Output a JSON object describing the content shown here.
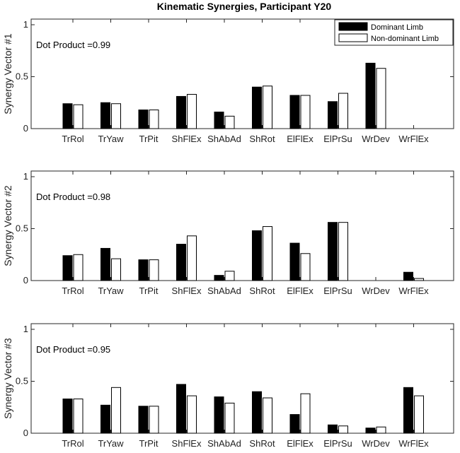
{
  "title": "Kinematic Synergies, Participant Y20",
  "legend": {
    "entries": [
      "Dominant Limb",
      "Non-dominant Limb"
    ],
    "colors": [
      "#000000",
      "#ffffff"
    ],
    "placement": "top-right of first panel"
  },
  "chart_data": [
    {
      "type": "bar",
      "ylabel": "Synergy Vector #1",
      "annotation": "Dot Product =0.99",
      "ylim": [
        0,
        1
      ],
      "yticks": [
        "0",
        "0.5",
        "1"
      ],
      "grid": false,
      "categories": [
        "TrRol",
        "TrYaw",
        "TrPit",
        "ShFlEx",
        "ShAbAd",
        "ShRot",
        "ElFlEx",
        "ElPrSu",
        "WrDev",
        "WrFlEx"
      ],
      "series": [
        {
          "name": "Dominant Limb",
          "values": [
            0.24,
            0.25,
            0.18,
            0.31,
            0.16,
            0.4,
            0.32,
            0.26,
            0.63,
            0.0
          ]
        },
        {
          "name": "Non-dominant Limb",
          "values": [
            0.23,
            0.24,
            0.18,
            0.33,
            0.12,
            0.41,
            0.32,
            0.34,
            0.58,
            0.0
          ]
        }
      ]
    },
    {
      "type": "bar",
      "ylabel": "Synergy Vector #2",
      "annotation": "Dot Product =0.98",
      "ylim": [
        0,
        1
      ],
      "yticks": [
        "0",
        "0.5",
        "1"
      ],
      "grid": false,
      "categories": [
        "TrRol",
        "TrYaw",
        "TrPit",
        "ShFlEx",
        "ShAbAd",
        "ShRot",
        "ElFlEx",
        "ElPrSu",
        "WrDev",
        "WrFlEx"
      ],
      "series": [
        {
          "name": "Dominant Limb",
          "values": [
            0.24,
            0.31,
            0.2,
            0.35,
            0.05,
            0.48,
            0.36,
            0.56,
            0.0,
            0.08
          ]
        },
        {
          "name": "Non-dominant Limb",
          "values": [
            0.25,
            0.21,
            0.2,
            0.43,
            0.09,
            0.52,
            0.26,
            0.56,
            0.0,
            0.02
          ]
        }
      ]
    },
    {
      "type": "bar",
      "ylabel": "Synergy Vector #3",
      "annotation": "Dot Product =0.95",
      "ylim": [
        0,
        1
      ],
      "yticks": [
        "0",
        "0.5",
        "1"
      ],
      "grid": false,
      "categories": [
        "TrRol",
        "TrYaw",
        "TrPit",
        "ShFlEx",
        "ShAbAd",
        "ShRot",
        "ElFlEx",
        "ElPrSu",
        "WrDev",
        "WrFlEx"
      ],
      "series": [
        {
          "name": "Dominant Limb",
          "values": [
            0.33,
            0.27,
            0.26,
            0.47,
            0.35,
            0.4,
            0.18,
            0.08,
            0.05,
            0.44
          ]
        },
        {
          "name": "Non-dominant Limb",
          "values": [
            0.33,
            0.44,
            0.26,
            0.36,
            0.29,
            0.34,
            0.38,
            0.07,
            0.06,
            0.36
          ]
        }
      ]
    }
  ]
}
